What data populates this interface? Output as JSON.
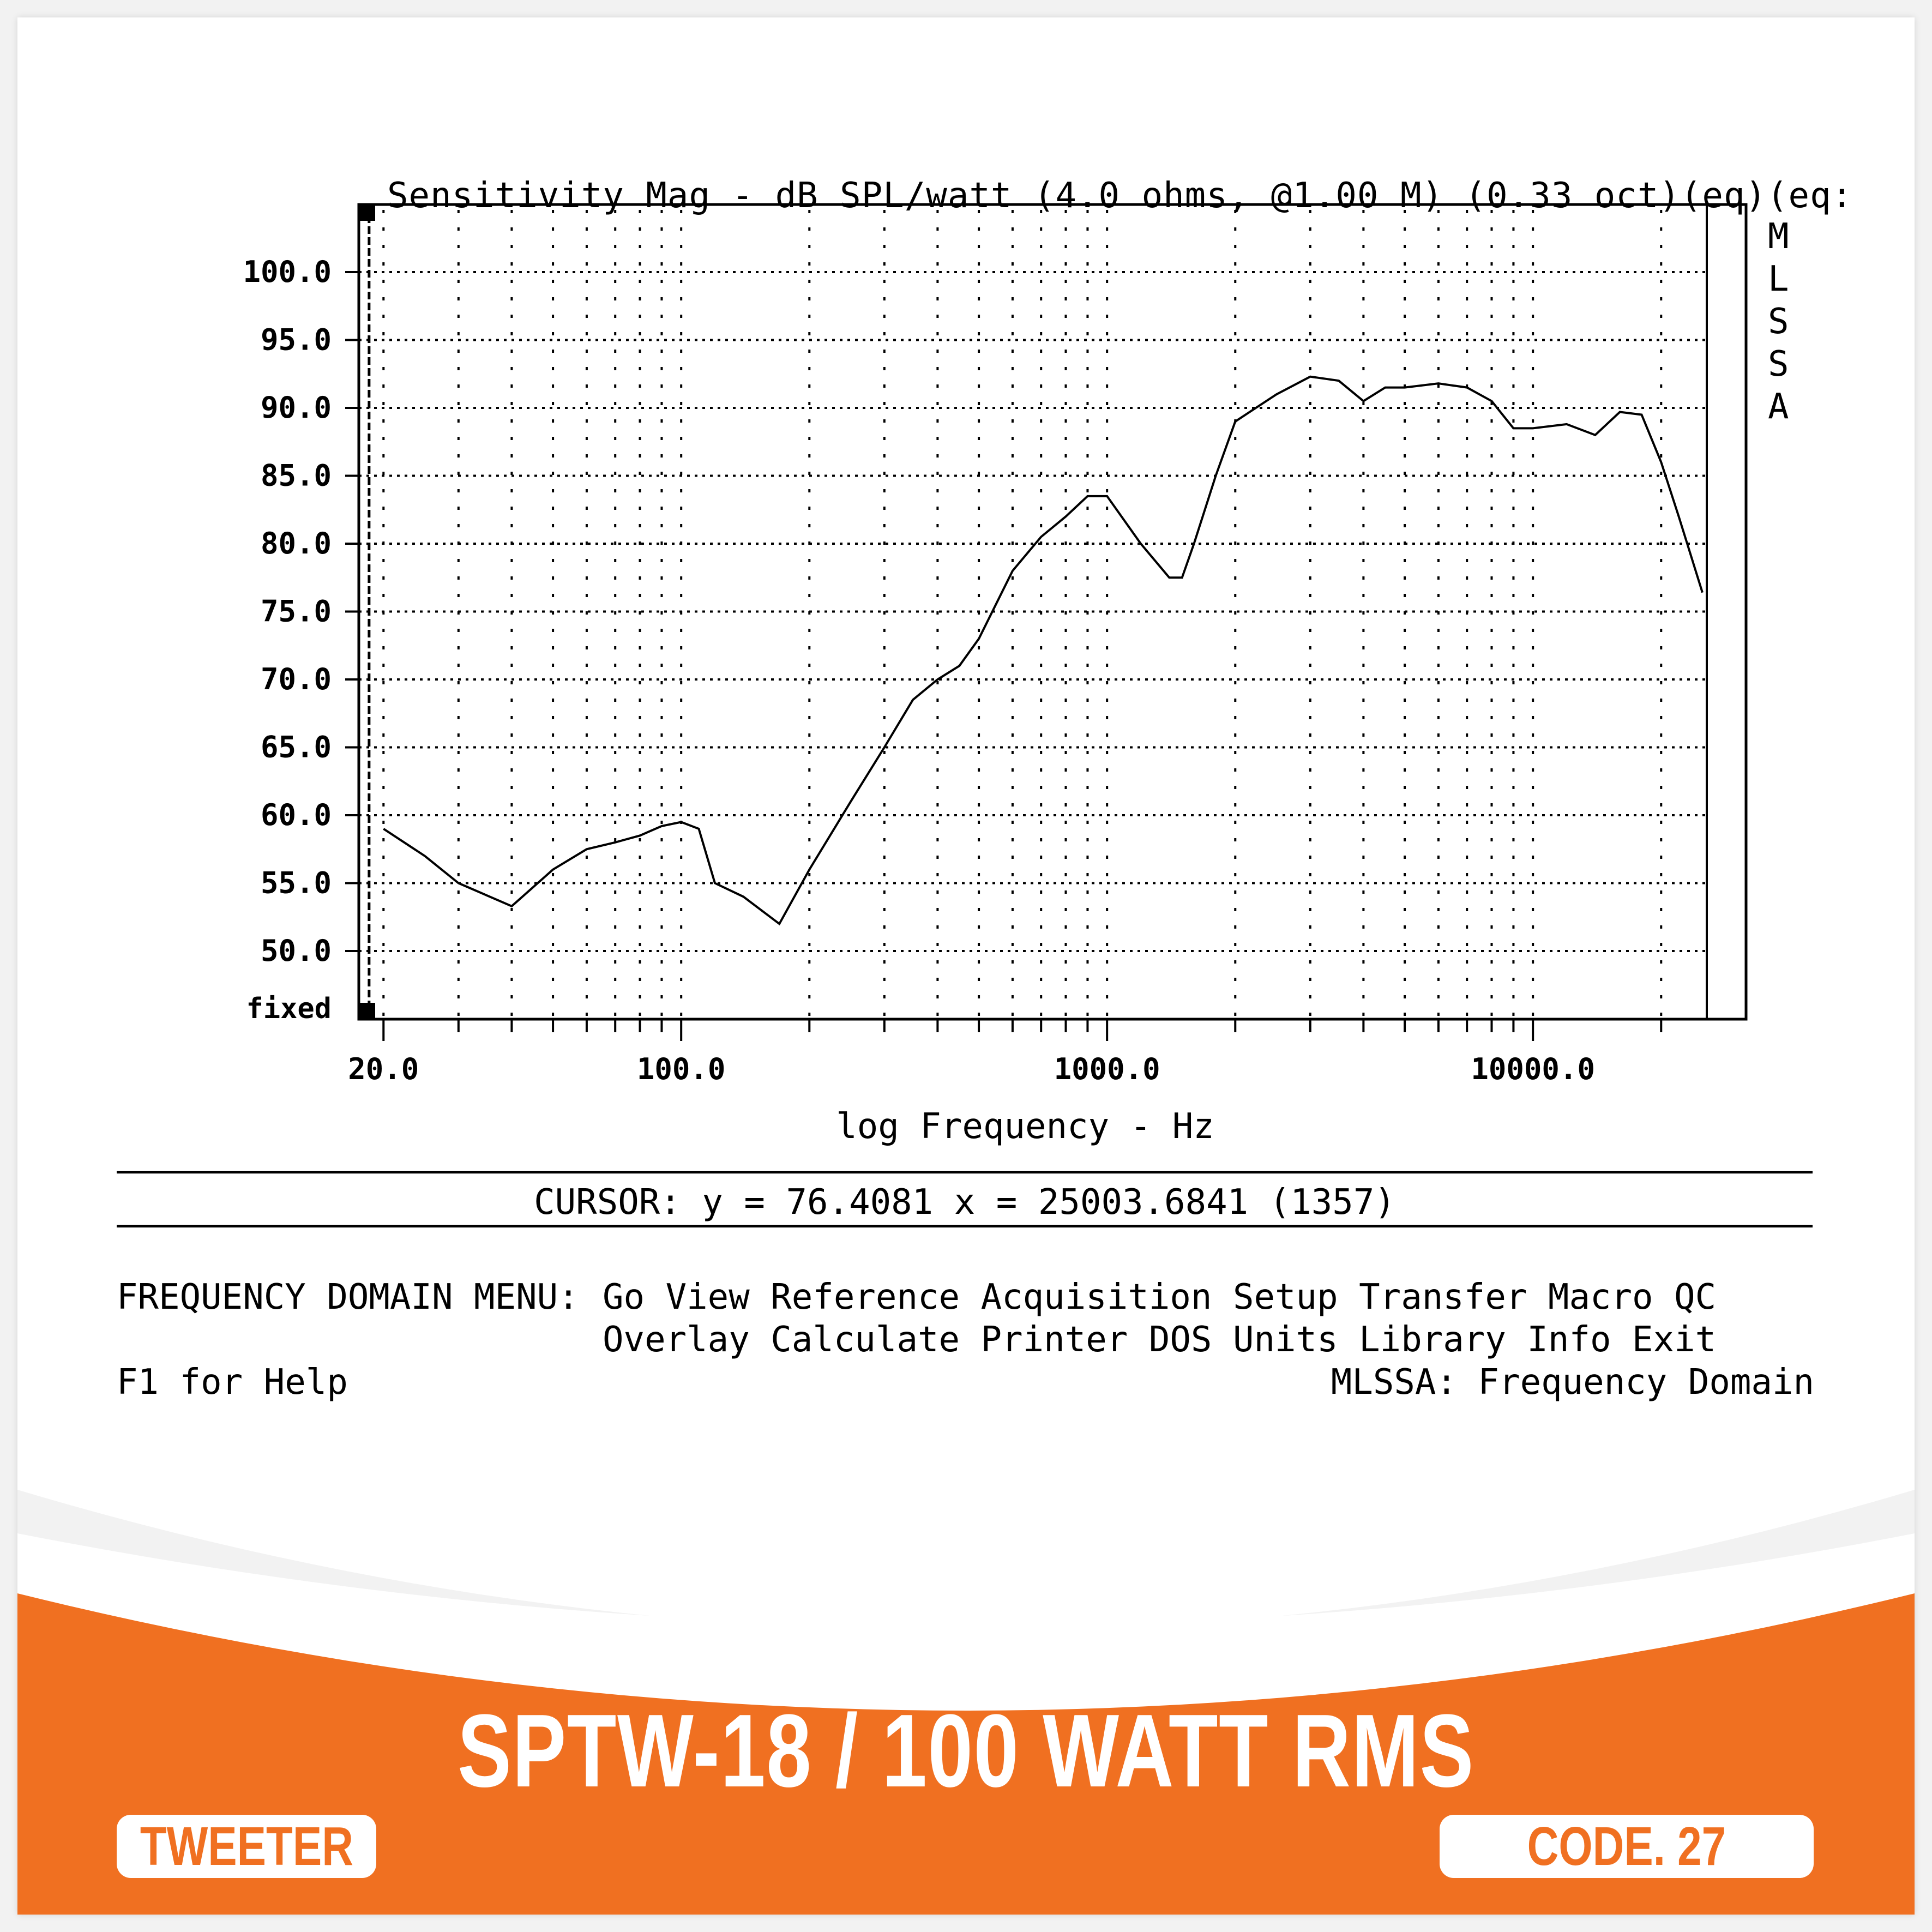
{
  "header": {
    "title": "Sensitivity Mag - dB SPL/watt (4.0 ohms, @1.00 M) (0.33 oct)(eq)(eq:"
  },
  "side_label": [
    "M",
    "L",
    "S",
    "S",
    "A"
  ],
  "cursor": {
    "text": "CURSOR: y = 76.4081 x = 25003.6841 (1357)"
  },
  "menu": {
    "label": "FREQUENCY DOMAIN MENU:",
    "row1": [
      "Go",
      "View",
      "Reference",
      "Acquisition",
      "Setup",
      "Transfer",
      "Macro",
      "QC"
    ],
    "row2": [
      "Overlay",
      "Calculate",
      "Printer",
      "DOS",
      "Units",
      "Library",
      "Info",
      "Exit"
    ],
    "row1_text": "Go View Reference Acquisition Setup Transfer Macro QC",
    "row2_text": "Overlay Calculate Printer DOS Units Library Info Exit",
    "help": "F1 for Help",
    "status": "MLSSA: Frequency Domain"
  },
  "product": {
    "headline": "SPTW-18 / 100 WATT RMS",
    "type_badge": "TWEETER",
    "code_badge": "CODE. 27"
  },
  "colors": {
    "accent": "#f07021",
    "plot_line": "#000000",
    "background": "#ffffff"
  },
  "chart_data": {
    "type": "line",
    "title": "Sensitivity Mag - dB SPL/watt (4.0 ohms, @1.00 M) (0.33 oct)(eq)(eq:",
    "xlabel": "log Frequency - Hz",
    "ylabel": "dB SPL/watt",
    "xscale": "log",
    "xlim": [
      17,
      25000
    ],
    "ylim": [
      46,
      106
    ],
    "x_ticks": [
      "20.0",
      "100.0",
      "1000.0",
      "10000.0"
    ],
    "y_ticks": [
      "100.0",
      "95.0",
      "90.0",
      "85.0",
      "80.0",
      "75.0",
      "70.0",
      "65.0",
      "60.0",
      "55.0",
      "50.0"
    ],
    "y_bottom_label": "fixed",
    "grid": true,
    "series": [
      {
        "name": "Sensitivity",
        "x": [
          20,
          25,
          30,
          40,
          50,
          60,
          70,
          80,
          90,
          100,
          110,
          120,
          140,
          170,
          200,
          250,
          300,
          350,
          400,
          450,
          500,
          600,
          700,
          800,
          900,
          1000,
          1200,
          1400,
          1500,
          1600,
          1800,
          2000,
          2500,
          3000,
          3500,
          4000,
          4500,
          5000,
          6000,
          7000,
          8000,
          9000,
          10000,
          12000,
          14000,
          16000,
          18000,
          20000,
          22000,
          25000
        ],
        "y": [
          59,
          57,
          55,
          53.3,
          56,
          57.5,
          58,
          58.5,
          59.2,
          59.5,
          59,
          55,
          54,
          52,
          56,
          61,
          65,
          68.5,
          70,
          71,
          73,
          78,
          80.5,
          82,
          83.5,
          83.5,
          80,
          77.5,
          77.5,
          80,
          85,
          89,
          91,
          92.3,
          92,
          90.5,
          91.5,
          91.5,
          91.8,
          91.5,
          90.5,
          88.5,
          88.5,
          88.8,
          88,
          89.7,
          89.5,
          86,
          82,
          76.4
        ]
      }
    ]
  }
}
